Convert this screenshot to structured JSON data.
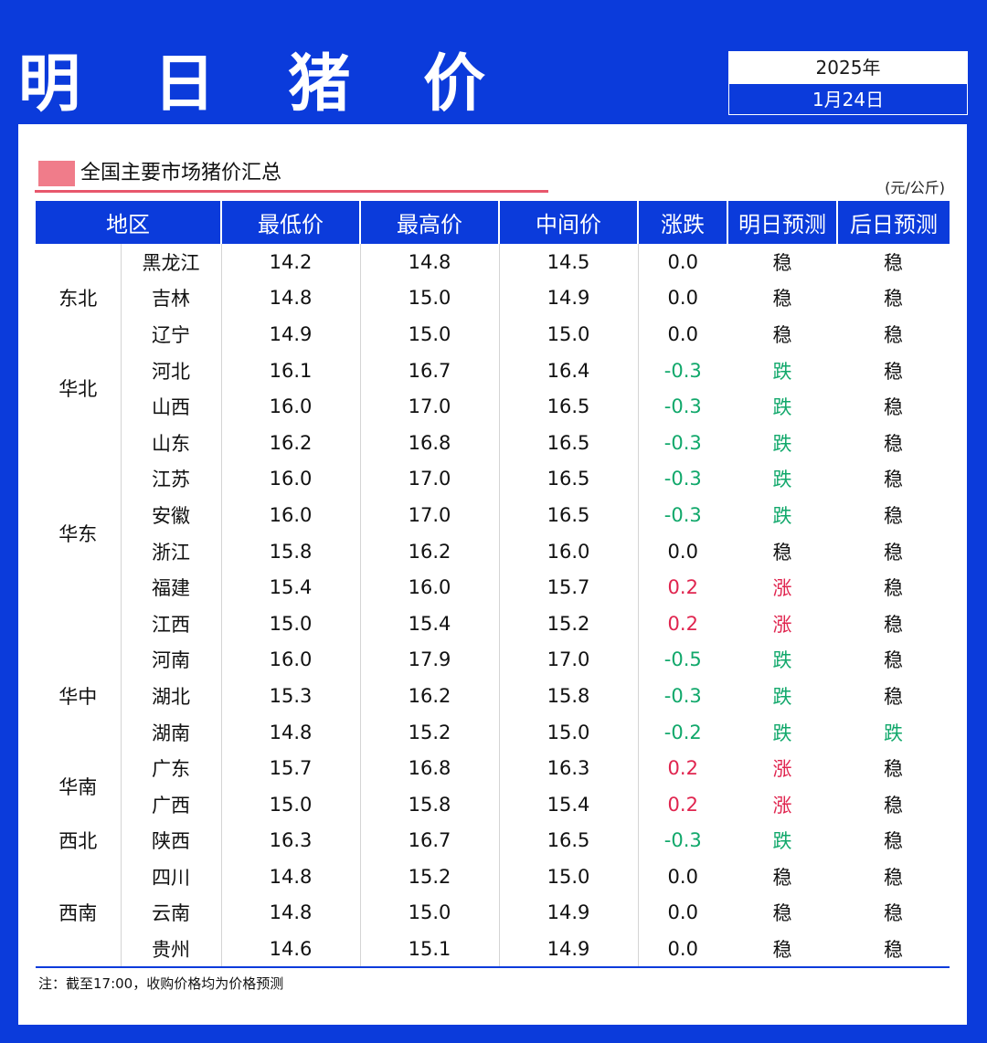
{
  "title": "明 日 猪 价",
  "date": {
    "year": "2025年",
    "day": "1月24日"
  },
  "section_title": "全国主要市场猪价汇总",
  "unit": "(元/公斤)",
  "headers": [
    "地区",
    "最低价",
    "最高价",
    "中间价",
    "涨跌",
    "明日预测",
    "后日预测"
  ],
  "regions": [
    {
      "name": "东北",
      "span": 3
    },
    {
      "name": "华北",
      "span": 2
    },
    {
      "name": "华东",
      "span": 6
    },
    {
      "name": "华中",
      "span": 3
    },
    {
      "name": "华南",
      "span": 2
    },
    {
      "name": "西北",
      "span": 1
    },
    {
      "name": "西南",
      "span": 3
    }
  ],
  "rows": [
    {
      "province": "黑龙江",
      "low": "14.2",
      "high": "14.8",
      "mid": "14.5",
      "change": "0.0",
      "tomorrow": "稳",
      "day_after": "稳"
    },
    {
      "province": "吉林",
      "low": "14.8",
      "high": "15.0",
      "mid": "14.9",
      "change": "0.0",
      "tomorrow": "稳",
      "day_after": "稳"
    },
    {
      "province": "辽宁",
      "low": "14.9",
      "high": "15.0",
      "mid": "15.0",
      "change": "0.0",
      "tomorrow": "稳",
      "day_after": "稳"
    },
    {
      "province": "河北",
      "low": "16.1",
      "high": "16.7",
      "mid": "16.4",
      "change": "-0.3",
      "tomorrow": "跌",
      "day_after": "稳"
    },
    {
      "province": "山西",
      "low": "16.0",
      "high": "17.0",
      "mid": "16.5",
      "change": "-0.3",
      "tomorrow": "跌",
      "day_after": "稳"
    },
    {
      "province": "山东",
      "low": "16.2",
      "high": "16.8",
      "mid": "16.5",
      "change": "-0.3",
      "tomorrow": "跌",
      "day_after": "稳"
    },
    {
      "province": "江苏",
      "low": "16.0",
      "high": "17.0",
      "mid": "16.5",
      "change": "-0.3",
      "tomorrow": "跌",
      "day_after": "稳"
    },
    {
      "province": "安徽",
      "low": "16.0",
      "high": "17.0",
      "mid": "16.5",
      "change": "-0.3",
      "tomorrow": "跌",
      "day_after": "稳"
    },
    {
      "province": "浙江",
      "low": "15.8",
      "high": "16.2",
      "mid": "16.0",
      "change": "0.0",
      "tomorrow": "稳",
      "day_after": "稳"
    },
    {
      "province": "福建",
      "low": "15.4",
      "high": "16.0",
      "mid": "15.7",
      "change": "0.2",
      "tomorrow": "涨",
      "day_after": "稳"
    },
    {
      "province": "江西",
      "low": "15.0",
      "high": "15.4",
      "mid": "15.2",
      "change": "0.2",
      "tomorrow": "涨",
      "day_after": "稳"
    },
    {
      "province": "河南",
      "low": "16.0",
      "high": "17.9",
      "mid": "17.0",
      "change": "-0.5",
      "tomorrow": "跌",
      "day_after": "稳"
    },
    {
      "province": "湖北",
      "low": "15.3",
      "high": "16.2",
      "mid": "15.8",
      "change": "-0.3",
      "tomorrow": "跌",
      "day_after": "稳"
    },
    {
      "province": "湖南",
      "low": "14.8",
      "high": "15.2",
      "mid": "15.0",
      "change": "-0.2",
      "tomorrow": "跌",
      "day_after": "跌"
    },
    {
      "province": "广东",
      "low": "15.7",
      "high": "16.8",
      "mid": "16.3",
      "change": "0.2",
      "tomorrow": "涨",
      "day_after": "稳"
    },
    {
      "province": "广西",
      "low": "15.0",
      "high": "15.8",
      "mid": "15.4",
      "change": "0.2",
      "tomorrow": "涨",
      "day_after": "稳"
    },
    {
      "province": "陕西",
      "low": "16.3",
      "high": "16.7",
      "mid": "16.5",
      "change": "-0.3",
      "tomorrow": "跌",
      "day_after": "稳"
    },
    {
      "province": "四川",
      "low": "14.8",
      "high": "15.2",
      "mid": "15.0",
      "change": "0.0",
      "tomorrow": "稳",
      "day_after": "稳"
    },
    {
      "province": "云南",
      "low": "14.8",
      "high": "15.0",
      "mid": "14.9",
      "change": "0.0",
      "tomorrow": "稳",
      "day_after": "稳"
    },
    {
      "province": "贵州",
      "low": "14.6",
      "high": "15.1",
      "mid": "14.9",
      "change": "0.0",
      "tomorrow": "稳",
      "day_after": "稳"
    }
  ],
  "note": "注：截至17:00，收购价格均为价格预测",
  "colors": {
    "brand_blue": "#0b3bdb",
    "up_red": "#e0254f",
    "down_green": "#11a86b",
    "marker_pink": "#f07c8a"
  }
}
